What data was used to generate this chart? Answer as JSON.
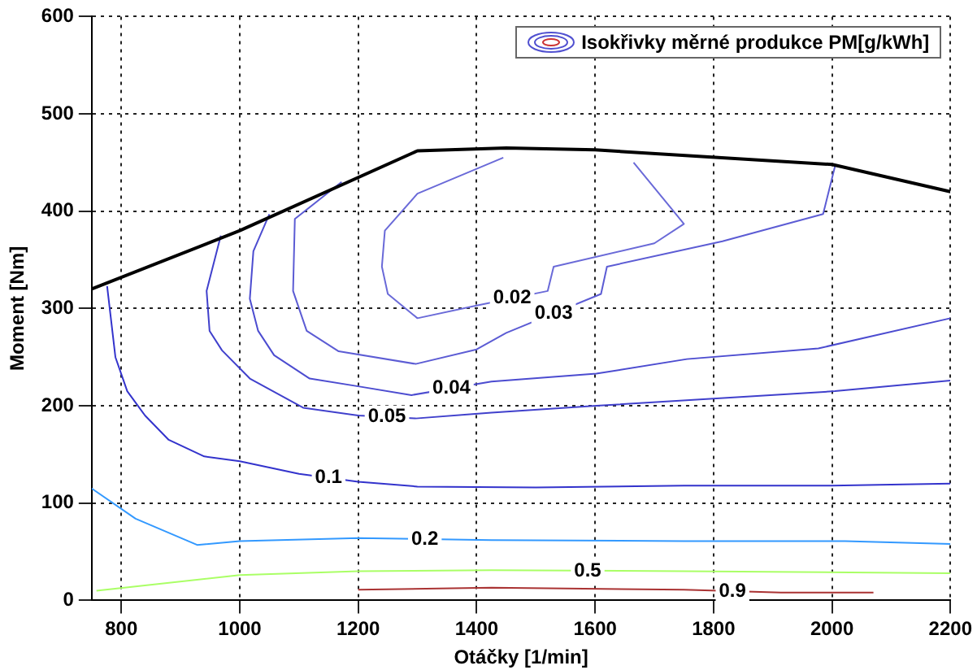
{
  "chart_data": {
    "type": "line",
    "xlabel": "Otáčky [1/min]",
    "ylabel": "Moment [Nm]",
    "legend_title": "Isokřivky měrné produkce PM[g/kWh]",
    "grid": true,
    "marker": "none",
    "line_style": "solid",
    "xlim": [
      750,
      2200
    ],
    "xticks": [
      800,
      1000,
      1200,
      1400,
      1600,
      1800,
      2000,
      2200
    ],
    "ylim": [
      0,
      600
    ],
    "yticks": [
      0,
      100,
      200,
      300,
      400,
      500,
      600
    ],
    "series": [
      {
        "color": "#000000",
        "x": [
          750,
          1000,
          1300,
          1450,
          1600,
          2000,
          2200
        ],
        "values": [
          320,
          380,
          462,
          465,
          463,
          448,
          420
        ]
      },
      {
        "name": "0.02",
        "color": "#6a6ad8",
        "x": [
          1445,
          1300,
          1245,
          1240,
          1250,
          1300,
          1400,
          1520,
          1530,
          1700,
          1750,
          1665
        ],
        "values": [
          455,
          418,
          380,
          343,
          315,
          290,
          303,
          318,
          343,
          367,
          387,
          450
        ]
      },
      {
        "name": "0.03",
        "color": "#5c5cd4",
        "x": [
          1172,
          1093,
          1090,
          1113,
          1167,
          1297,
          1400,
          1450,
          1610,
          1620,
          1815,
          1985,
          2005
        ],
        "values": [
          430,
          392,
          318,
          277,
          256,
          243,
          258,
          275,
          315,
          343,
          369,
          397,
          446
        ]
      },
      {
        "name": "0.04",
        "color": "#4c4cd0",
        "x": [
          1050,
          1023,
          1017,
          1031,
          1058,
          1118,
          1200,
          1290,
          1425,
          1602,
          1755,
          1977,
          2200
        ],
        "values": [
          397,
          359,
          310,
          277,
          252,
          228,
          220,
          211,
          225,
          233,
          248,
          259,
          290
        ]
      },
      {
        "name": "0.05",
        "color": "#4040cc",
        "x": [
          968,
          944,
          949,
          970,
          1017,
          1107,
          1200,
          1297,
          1425,
          1602,
          2005,
          2200
        ],
        "values": [
          375,
          318,
          277,
          257,
          228,
          198,
          190,
          187,
          193,
          200,
          215,
          226
        ]
      },
      {
        "name": "0.1",
        "color": "#3333cc",
        "x": [
          776,
          790,
          810,
          840,
          880,
          940,
          1000,
          1100,
          1200,
          1300,
          1500,
          1750,
          2000,
          2200
        ],
        "values": [
          323,
          250,
          215,
          190,
          165,
          148,
          143,
          130,
          122,
          117,
          116,
          118,
          118,
          120
        ]
      },
      {
        "name": "0.2",
        "color": "#3399ff",
        "x": [
          750,
          824,
          928,
          1000,
          1200,
          1425,
          1750,
          2022,
          2200
        ],
        "values": [
          115,
          84,
          57,
          61,
          64,
          62,
          61,
          61,
          58
        ]
      },
      {
        "name": "0.5",
        "color": "#aaff66",
        "x": [
          758,
          1000,
          1200,
          1425,
          1750,
          2200
        ],
        "values": [
          10,
          26,
          30,
          31,
          30,
          28
        ]
      },
      {
        "name": "0.9",
        "color": "#aa3333",
        "x": [
          1200,
          1425,
          1750,
          1914,
          2070
        ],
        "values": [
          11,
          13,
          11,
          8,
          8
        ]
      }
    ]
  }
}
